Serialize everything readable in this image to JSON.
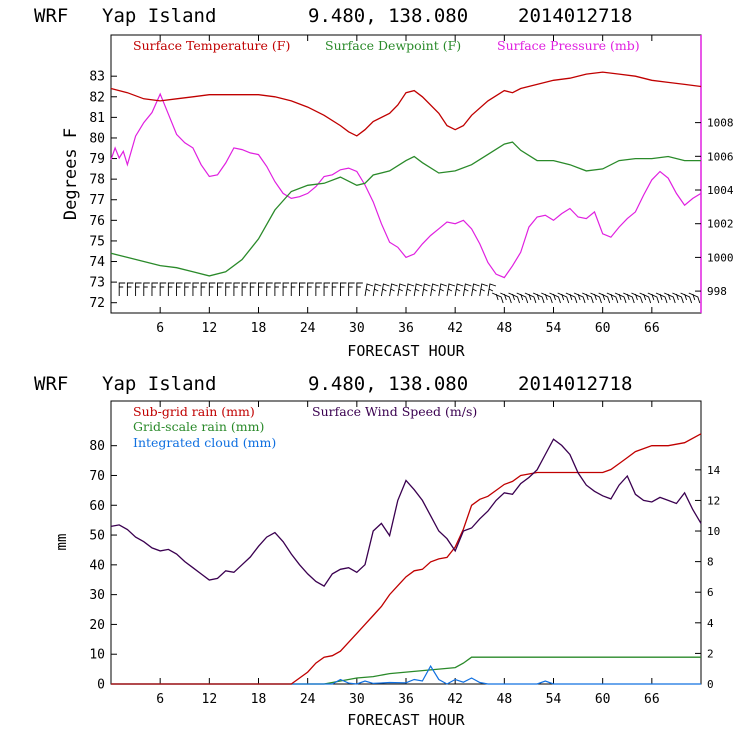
{
  "colors": {
    "temperature": "#c00000",
    "dewpoint": "#2a8a2a",
    "pressure": "#e020e0",
    "subgrid": "#c00000",
    "gridscale": "#2a8a2a",
    "cloud": "#1070e0",
    "wind": "#3a0050",
    "barb": "#000000"
  },
  "panel1": {
    "model": "WRF",
    "location": "Yap Island",
    "coords": "9.480, 138.080",
    "init": "2014012718",
    "ylabel": "Degrees F",
    "xlabel": "FORECAST HOUR",
    "legend_temperature": "Surface Temperature (F)",
    "legend_dewpoint": "Surface Dewpoint (F)",
    "legend_pressure": "Surface Pressure (mb)"
  },
  "panel2": {
    "model": "WRF",
    "location": "Yap Island",
    "coords": "9.480, 138.080",
    "init": "2014012718",
    "ylabel": "mm",
    "xlabel": "FORECAST HOUR",
    "legend_subgrid": "Sub-grid rain (mm)",
    "legend_gridscale": "Grid-scale rain (mm)",
    "legend_cloud": "Integrated cloud (mm)",
    "legend_wind": "Surface Wind Speed (m/s)"
  },
  "chart_data": [
    {
      "type": "line",
      "title": "WRF Yap Island 9.480, 138.080 2014012718",
      "xlabel": "FORECAST HOUR",
      "ylabel": "Degrees F",
      "y2label": "Surface Pressure (mb)",
      "xlim": [
        0,
        72
      ],
      "ylim": [
        71.5,
        85
      ],
      "y2lim": [
        996.7,
        1013.2
      ],
      "x_ticks": [
        "6",
        "12",
        "18",
        "24",
        "30",
        "36",
        "42",
        "48",
        "54",
        "60",
        "66"
      ],
      "y_ticks": [
        "72",
        "73",
        "74",
        "75",
        "76",
        "77",
        "78",
        "79",
        "80",
        "81",
        "82",
        "83"
      ],
      "y2_ticks": [
        "998",
        "1000",
        "1002",
        "1004",
        "1006",
        "1008"
      ],
      "series": [
        {
          "name": "Surface Temperature (F)",
          "axis": "left",
          "x": [
            0,
            2,
            4,
            6,
            8,
            10,
            12,
            14,
            16,
            18,
            20,
            22,
            24,
            26,
            28,
            29,
            30,
            31,
            32,
            34,
            35,
            36,
            37,
            38,
            40,
            41,
            42,
            43,
            44,
            46,
            48,
            49,
            50,
            52,
            54,
            56,
            58,
            60,
            62,
            64,
            66,
            68,
            70,
            72
          ],
          "values": [
            82.4,
            82.2,
            81.9,
            81.8,
            81.9,
            82.0,
            82.1,
            82.1,
            82.1,
            82.1,
            82.0,
            81.8,
            81.5,
            81.1,
            80.6,
            80.3,
            80.1,
            80.4,
            80.8,
            81.2,
            81.6,
            82.2,
            82.3,
            82.0,
            81.2,
            80.6,
            80.4,
            80.6,
            81.1,
            81.8,
            82.3,
            82.2,
            82.4,
            82.6,
            82.8,
            82.9,
            83.1,
            83.2,
            83.1,
            83.0,
            82.8,
            82.7,
            82.6,
            82.5
          ]
        },
        {
          "name": "Surface Dewpoint (F)",
          "axis": "left",
          "x": [
            0,
            2,
            4,
            6,
            8,
            10,
            12,
            14,
            16,
            18,
            20,
            22,
            24,
            26,
            28,
            30,
            31,
            32,
            34,
            36,
            37,
            38,
            40,
            42,
            44,
            46,
            48,
            49,
            50,
            52,
            54,
            56,
            58,
            60,
            62,
            64,
            66,
            68,
            70,
            72
          ],
          "values": [
            74.4,
            74.2,
            74.0,
            73.8,
            73.7,
            73.5,
            73.3,
            73.5,
            74.1,
            75.1,
            76.5,
            77.4,
            77.7,
            77.8,
            78.1,
            77.7,
            77.8,
            78.2,
            78.4,
            78.9,
            79.1,
            78.8,
            78.3,
            78.4,
            78.7,
            79.2,
            79.7,
            79.8,
            79.4,
            78.9,
            78.9,
            78.7,
            78.4,
            78.5,
            78.9,
            79.0,
            79.0,
            79.1,
            78.9,
            78.9
          ]
        },
        {
          "name": "Surface Pressure (mb)",
          "axis": "right",
          "x": [
            0,
            0.5,
            1,
            1.5,
            2,
            3,
            4,
            5,
            6,
            7,
            8,
            9,
            10,
            11,
            12,
            13,
            14,
            15,
            16,
            17,
            18,
            19,
            20,
            21,
            22,
            23,
            24,
            25,
            26,
            27,
            28,
            29,
            30,
            31,
            32,
            33,
            34,
            35,
            36,
            37,
            38,
            39,
            40,
            41,
            42,
            43,
            44,
            45,
            46,
            47,
            48,
            49,
            50,
            51,
            52,
            53,
            54,
            55,
            56,
            57,
            58,
            59,
            60,
            61,
            62,
            63,
            64,
            65,
            66,
            67,
            68,
            69,
            70,
            71,
            72
          ],
          "values": [
            1005.8,
            1006.5,
            1005.9,
            1006.3,
            1005.5,
            1007.2,
            1008.0,
            1008.6,
            1009.7,
            1008.5,
            1007.3,
            1006.8,
            1006.5,
            1005.5,
            1004.8,
            1004.9,
            1005.6,
            1006.5,
            1006.4,
            1006.2,
            1006.1,
            1005.4,
            1004.5,
            1003.8,
            1003.5,
            1003.6,
            1003.8,
            1004.2,
            1004.8,
            1004.9,
            1005.2,
            1005.3,
            1005.1,
            1004.3,
            1003.3,
            1002.0,
            1000.9,
            1000.6,
            1000.0,
            1000.2,
            1000.8,
            1001.3,
            1001.7,
            1002.1,
            1002.0,
            1002.2,
            1001.7,
            1000.8,
            999.7,
            999.0,
            998.8,
            999.5,
            1000.3,
            1001.8,
            1002.4,
            1002.5,
            1002.2,
            1002.6,
            1002.9,
            1002.4,
            1002.3,
            1002.7,
            1001.4,
            1001.2,
            1001.8,
            1002.3,
            1002.7,
            1003.7,
            1004.6,
            1005.1,
            1004.7,
            1003.8,
            1003.1,
            1003.5,
            1003.8
          ]
        }
      ],
      "wind_barbs": "plotted along the bottom of the panel at each forecast hour"
    },
    {
      "type": "line",
      "title": "WRF Yap Island 9.480, 138.080 2014012718",
      "xlabel": "FORECAST HOUR",
      "ylabel": "mm",
      "y2label": "Surface Wind Speed (m/s)",
      "xlim": [
        0,
        72
      ],
      "ylim": [
        0,
        95
      ],
      "y2lim": [
        0,
        18.5
      ],
      "x_ticks": [
        "6",
        "12",
        "18",
        "24",
        "30",
        "36",
        "42",
        "48",
        "54",
        "60",
        "66"
      ],
      "y_ticks": [
        "0",
        "10",
        "20",
        "30",
        "40",
        "50",
        "60",
        "70",
        "80"
      ],
      "y2_ticks": [
        "0",
        "2",
        "4",
        "6",
        "8",
        "10",
        "12",
        "14"
      ],
      "series": [
        {
          "name": "Sub-grid rain (mm)",
          "axis": "left",
          "x": [
            0,
            20,
            22,
            24,
            25,
            26,
            27,
            28,
            29,
            30,
            31,
            32,
            33,
            34,
            35,
            36,
            37,
            38,
            39,
            40,
            41,
            42,
            43,
            44,
            45,
            46,
            47,
            48,
            49,
            50,
            52,
            54,
            56,
            58,
            60,
            61,
            62,
            63,
            64,
            66,
            68,
            70,
            72
          ],
          "values": [
            0,
            0,
            0,
            4,
            7,
            9,
            9.5,
            11,
            14,
            17,
            20,
            23,
            26,
            30,
            33,
            36,
            38,
            38.5,
            41,
            42,
            42.5,
            46,
            52,
            60,
            62,
            63,
            65,
            67,
            68,
            70,
            71,
            71,
            71,
            71,
            71,
            72,
            74,
            76,
            78,
            80,
            80,
            81,
            84
          ]
        },
        {
          "name": "Grid-scale rain (mm)",
          "axis": "left",
          "x": [
            0,
            26,
            28,
            30,
            32,
            34,
            36,
            38,
            40,
            42,
            43,
            44,
            48,
            54,
            60,
            66,
            72
          ],
          "values": [
            0,
            0,
            1,
            2,
            2.5,
            3.5,
            4,
            4.5,
            5,
            5.5,
            7,
            9,
            9,
            9,
            9,
            9,
            9
          ]
        },
        {
          "name": "Integrated cloud (mm)",
          "axis": "left",
          "x": [
            0,
            26,
            27,
            28,
            29,
            30,
            31,
            32,
            34,
            36,
            37,
            38,
            39,
            40,
            41,
            42,
            43,
            44,
            45,
            46,
            52,
            53,
            54,
            72
          ],
          "values": [
            0,
            0,
            0,
            1.5,
            0.3,
            0,
            1,
            0.2,
            0.5,
            0.4,
            1.5,
            1,
            6,
            1.5,
            0,
            1.5,
            0.6,
            2,
            0.5,
            0,
            0,
            1,
            0,
            0
          ]
        },
        {
          "name": "Surface Wind Speed (m/s)",
          "axis": "right",
          "x": [
            0,
            1,
            2,
            3,
            4,
            5,
            6,
            7,
            8,
            9,
            10,
            11,
            12,
            13,
            14,
            15,
            16,
            17,
            18,
            19,
            20,
            21,
            22,
            23,
            24,
            25,
            26,
            27,
            28,
            29,
            30,
            31,
            32,
            33,
            34,
            35,
            36,
            37,
            38,
            39,
            40,
            41,
            42,
            43,
            44,
            45,
            46,
            47,
            48,
            49,
            50,
            51,
            52,
            53,
            54,
            55,
            56,
            57,
            58,
            59,
            60,
            61,
            62,
            63,
            64,
            65,
            66,
            67,
            68,
            69,
            70,
            71,
            72
          ],
          "values": [
            10.3,
            10.4,
            10.1,
            9.6,
            9.3,
            8.9,
            8.7,
            8.8,
            8.5,
            8.0,
            7.6,
            7.2,
            6.8,
            6.9,
            7.4,
            7.3,
            7.8,
            8.3,
            9.0,
            9.6,
            9.9,
            9.3,
            8.5,
            7.8,
            7.2,
            6.7,
            6.4,
            7.2,
            7.5,
            7.6,
            7.3,
            7.8,
            10.0,
            10.5,
            9.7,
            12.0,
            13.3,
            12.7,
            12.0,
            11.0,
            10.0,
            9.5,
            8.7,
            10.0,
            10.2,
            10.8,
            11.3,
            12.0,
            12.5,
            12.4,
            13.1,
            13.5,
            14.0,
            15.0,
            16.0,
            15.6,
            15.0,
            13.8,
            13.0,
            12.6,
            12.3,
            12.1,
            13.0,
            13.6,
            12.4,
            12.0,
            11.9,
            12.2,
            12.0,
            11.8,
            12.5,
            11.4,
            10.5
          ]
        }
      ]
    }
  ]
}
